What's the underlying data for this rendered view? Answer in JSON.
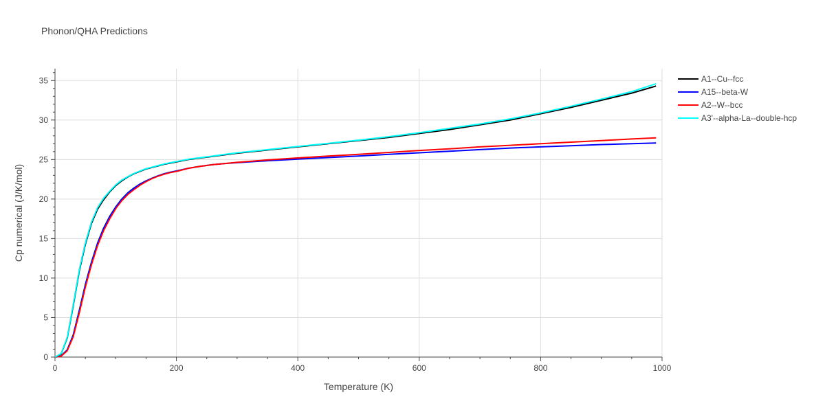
{
  "chart_data": {
    "type": "line",
    "title": "Phonon/QHA Predictions",
    "xlabel": "Temperature (K)",
    "ylabel": "Cp numerical (J/K/mol)",
    "xlim": [
      0,
      1000
    ],
    "ylim": [
      0,
      36.5
    ],
    "xticks": [
      0,
      200,
      400,
      600,
      800,
      1000
    ],
    "xtick_labels": [
      "0",
      "200",
      "400",
      "600",
      "800",
      "1000"
    ],
    "yticks": [
      0,
      5,
      10,
      15,
      20,
      25,
      30,
      35
    ],
    "ytick_labels": [
      "0",
      "5",
      "10",
      "15",
      "20",
      "25",
      "30",
      "35"
    ],
    "grid": true,
    "legend_position": "top-right",
    "x": [
      0,
      10,
      20,
      30,
      40,
      50,
      60,
      70,
      80,
      90,
      100,
      110,
      120,
      130,
      140,
      150,
      160,
      170,
      180,
      190,
      200,
      220,
      240,
      260,
      280,
      300,
      350,
      400,
      450,
      500,
      550,
      600,
      650,
      700,
      750,
      800,
      850,
      900,
      950,
      990
    ],
    "series": [
      {
        "name": "A1--Cu--fcc",
        "color": "#000000",
        "values": [
          0,
          0.4,
          2.4,
          6.5,
          10.9,
          14.3,
          16.9,
          18.7,
          19.9,
          20.9,
          21.7,
          22.3,
          22.8,
          23.2,
          23.5,
          23.8,
          24.0,
          24.2,
          24.4,
          24.55,
          24.7,
          25.0,
          25.2,
          25.4,
          25.6,
          25.8,
          26.2,
          26.6,
          27.0,
          27.4,
          27.8,
          28.3,
          28.8,
          29.4,
          30.0,
          30.8,
          31.6,
          32.5,
          33.4,
          34.3
        ]
      },
      {
        "name": "A15--beta-W",
        "color": "#0000ff",
        "values": [
          0,
          0.15,
          0.9,
          2.8,
          5.9,
          9.2,
          12.0,
          14.4,
          16.3,
          17.8,
          19.0,
          20.0,
          20.8,
          21.4,
          21.9,
          22.3,
          22.65,
          22.95,
          23.2,
          23.4,
          23.55,
          23.9,
          24.15,
          24.35,
          24.5,
          24.6,
          24.85,
          25.05,
          25.25,
          25.45,
          25.65,
          25.85,
          26.05,
          26.25,
          26.45,
          26.6,
          26.75,
          26.9,
          27.0,
          27.1
        ]
      },
      {
        "name": "A2--W--bcc",
        "color": "#ff0000",
        "values": [
          0,
          0.1,
          0.8,
          2.6,
          5.6,
          8.9,
          11.7,
          14.1,
          16.0,
          17.5,
          18.8,
          19.8,
          20.6,
          21.2,
          21.75,
          22.2,
          22.6,
          22.9,
          23.15,
          23.35,
          23.5,
          23.9,
          24.15,
          24.35,
          24.5,
          24.65,
          24.95,
          25.2,
          25.45,
          25.65,
          25.9,
          26.15,
          26.35,
          26.6,
          26.8,
          27.0,
          27.2,
          27.4,
          27.6,
          27.75
        ]
      },
      {
        "name": "A3'--alpha-La--double-hcp",
        "color": "#00ffff",
        "values": [
          0,
          0.45,
          2.5,
          6.7,
          11.1,
          14.5,
          17.1,
          18.9,
          20.1,
          21.0,
          21.8,
          22.4,
          22.85,
          23.25,
          23.55,
          23.85,
          24.05,
          24.25,
          24.45,
          24.6,
          24.75,
          25.05,
          25.25,
          25.45,
          25.65,
          25.85,
          26.25,
          26.65,
          27.05,
          27.45,
          27.9,
          28.4,
          28.95,
          29.5,
          30.15,
          30.9,
          31.75,
          32.65,
          33.6,
          34.6
        ]
      }
    ]
  }
}
